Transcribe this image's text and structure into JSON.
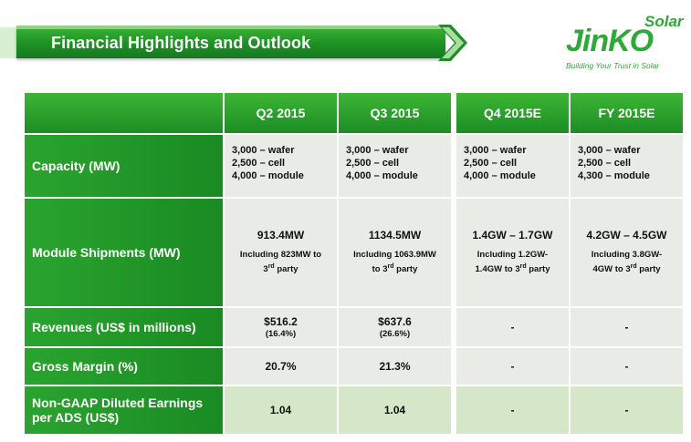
{
  "header": {
    "title": "Financial Highlights and Outlook"
  },
  "logo": {
    "brand": "JinKO",
    "solar": "Solar",
    "tagline": "Building Your Trust in Solar"
  },
  "colors": {
    "accent_green": "#1d8f25",
    "light_green": "#d5e6c9",
    "cell_gray": "#e9ece6"
  },
  "table": {
    "columns": [
      "Q2 2015",
      "Q3 2015",
      "Q4 2015E",
      "FY 2015E"
    ],
    "rows": [
      {
        "label": "Capacity (MW)",
        "cells": [
          [
            "3,000 – wafer",
            "2,500 – cell",
            "4,000 – module"
          ],
          [
            "3,000 – wafer",
            "2,500 – cell",
            "4,000 – module"
          ],
          [
            "3,000 – wafer",
            "2,500 – cell",
            "4,000 – module"
          ],
          [
            "3,000 – wafer",
            "2,500 – cell",
            "4,300 – module"
          ]
        ]
      },
      {
        "label": "Module Shipments (MW)",
        "cells": [
          {
            "value": "913.4MW",
            "note_a": "Including 823MW to",
            "note_b": "3rd party"
          },
          {
            "value": "1134.5MW",
            "note_a": "Including 1063.9MW",
            "note_b": "to 3rd party"
          },
          {
            "value": "1.4GW – 1.7GW",
            "note_a": "Including 1.2GW-",
            "note_b": "1.4GW to 3rd party"
          },
          {
            "value": "4.2GW – 4.5GW",
            "note_a": "Including 3.8GW-",
            "note_b": "4GW to 3rd party"
          }
        ]
      },
      {
        "label": "Revenues (US$ in millions)",
        "cells": [
          {
            "value": "$516.2",
            "sub": "(16.4%)"
          },
          {
            "value": "$637.6",
            "sub": "(26.6%)"
          },
          {
            "value": "-"
          },
          {
            "value": "-"
          }
        ]
      },
      {
        "label": "Gross Margin (%)",
        "cells": [
          "20.7%",
          "21.3%",
          "-",
          "-"
        ]
      },
      {
        "label_a": "Non-GAAP Diluted Earnings",
        "label_b": "per ADS (US$)",
        "cells": [
          "1.04",
          "1.04",
          "-",
          "-"
        ]
      }
    ]
  }
}
